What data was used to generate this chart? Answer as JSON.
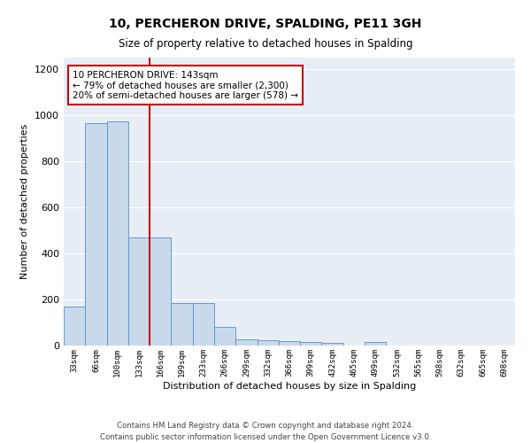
{
  "title": "10, PERCHERON DRIVE, SPALDING, PE11 3GH",
  "subtitle": "Size of property relative to detached houses in Spalding",
  "xlabel": "Distribution of detached houses by size in Spalding",
  "ylabel": "Number of detached properties",
  "categories": [
    "33sqm",
    "66sqm",
    "100sqm",
    "133sqm",
    "166sqm",
    "199sqm",
    "233sqm",
    "266sqm",
    "299sqm",
    "332sqm",
    "366sqm",
    "399sqm",
    "432sqm",
    "465sqm",
    "499sqm",
    "532sqm",
    "565sqm",
    "598sqm",
    "632sqm",
    "665sqm",
    "698sqm"
  ],
  "values": [
    170,
    965,
    975,
    470,
    470,
    185,
    185,
    80,
    28,
    22,
    20,
    15,
    13,
    0,
    15,
    0,
    0,
    0,
    0,
    0,
    0
  ],
  "bar_color": "#c8d9ec",
  "bar_edge_color": "#5a8fc2",
  "background_color": "#e8eef5",
  "grid_color": "#ffffff",
  "vline_index": 3,
  "vline_color": "#cc0000",
  "annotation_text": "10 PERCHERON DRIVE: 143sqm\n← 79% of detached houses are smaller (2,300)\n20% of semi-detached houses are larger (578) →",
  "annotation_box_color": "#cc0000",
  "footer_text": "Contains HM Land Registry data © Crown copyright and database right 2024.\nContains public sector information licensed under the Open Government Licence v3.0.",
  "ylim": [
    0,
    1250
  ],
  "yticks": [
    0,
    200,
    400,
    600,
    800,
    1000,
    1200
  ]
}
